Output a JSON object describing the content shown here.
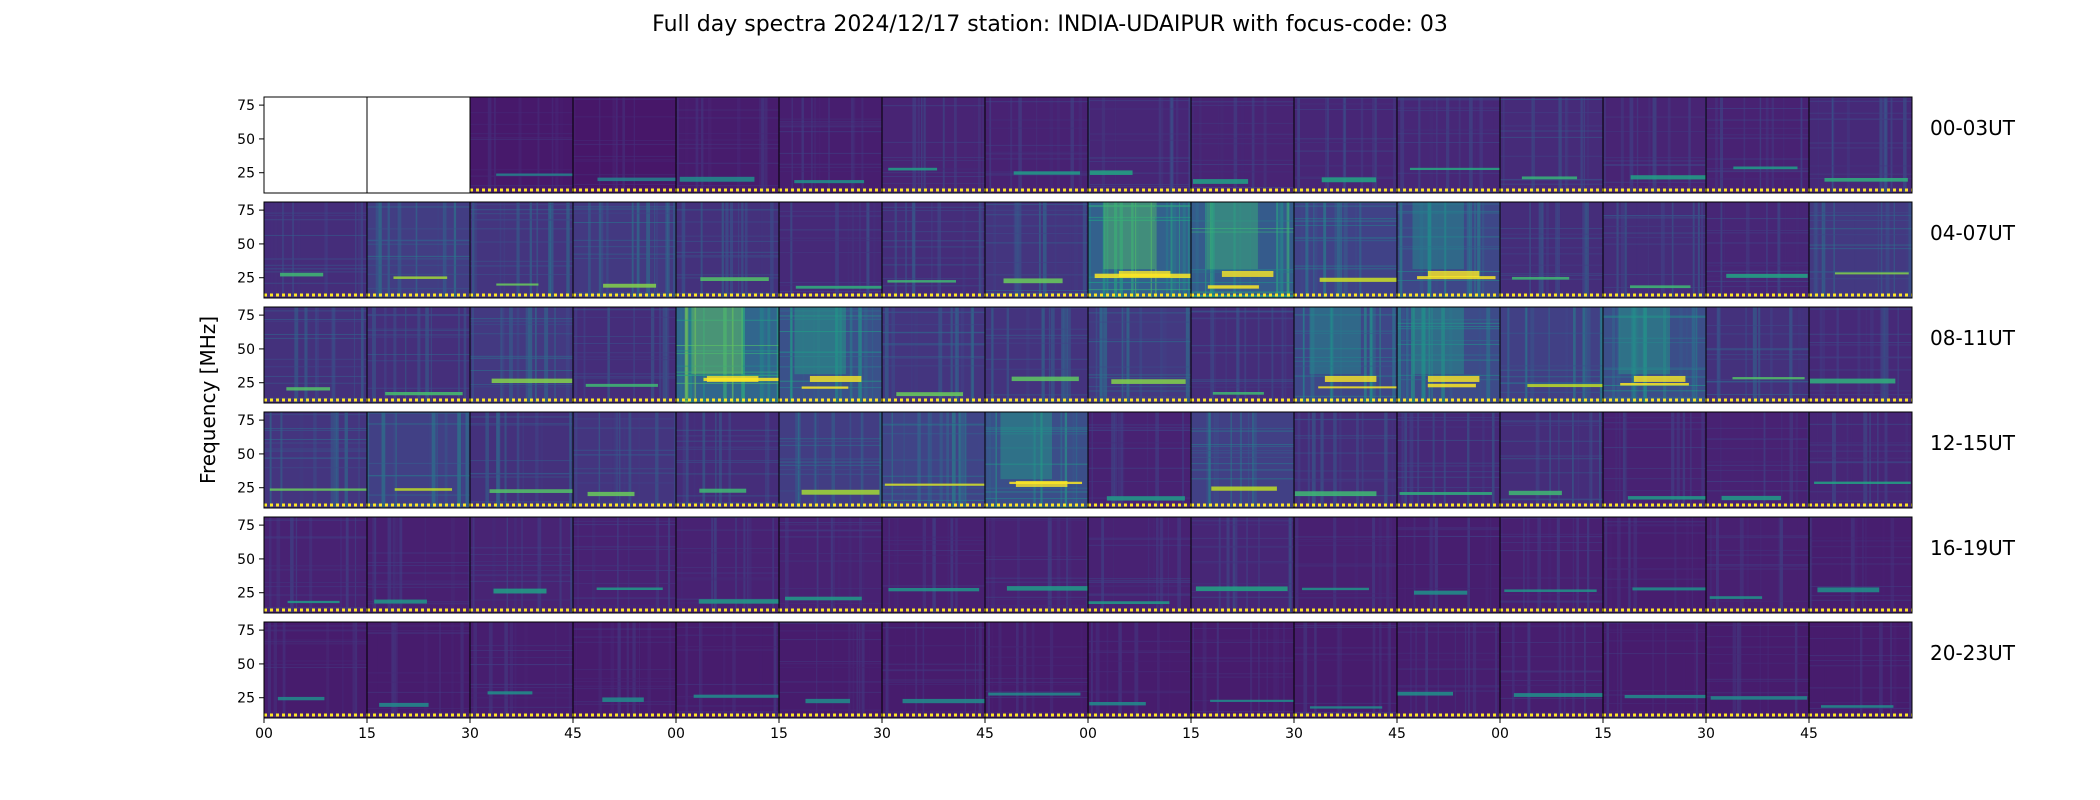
{
  "chart_data": {
    "type": "heatmap",
    "title": "Full day spectra 2024/12/17 station: INDIA-UDAIPUR with focus-code: 03",
    "ylabel": "Frequency [MHz]",
    "xlabel": "",
    "colormap": "viridis",
    "ylim": [
      10,
      81
    ],
    "y_ticks": [
      25,
      50,
      75
    ],
    "x_tick_labels": [
      "00",
      "15",
      "30",
      "45",
      "00",
      "15",
      "30",
      "45",
      "00",
      "15",
      "30",
      "45",
      "00",
      "15",
      "30",
      "45"
    ],
    "rows": [
      {
        "label": "00-03UT",
        "intensity": [
          null,
          null,
          0.12,
          0.11,
          0.13,
          0.14,
          0.17,
          0.16,
          0.18,
          0.17,
          0.18,
          0.19,
          0.21,
          0.17,
          0.16,
          0.2
        ]
      },
      {
        "label": "04-07UT",
        "intensity": [
          0.22,
          0.3,
          0.26,
          0.28,
          0.24,
          0.2,
          0.22,
          0.26,
          0.52,
          0.48,
          0.33,
          0.36,
          0.22,
          0.22,
          0.18,
          0.28
        ]
      },
      {
        "label": "08-11UT",
        "intensity": [
          0.24,
          0.23,
          0.28,
          0.22,
          0.55,
          0.42,
          0.26,
          0.25,
          0.28,
          0.22,
          0.36,
          0.38,
          0.32,
          0.4,
          0.24,
          0.2
        ]
      },
      {
        "label": "12-15UT",
        "intensity": [
          0.26,
          0.32,
          0.24,
          0.26,
          0.22,
          0.3,
          0.34,
          0.4,
          0.16,
          0.32,
          0.22,
          0.2,
          0.22,
          0.16,
          0.16,
          0.18
        ]
      },
      {
        "label": "16-19UT",
        "intensity": [
          0.16,
          0.15,
          0.17,
          0.16,
          0.16,
          0.16,
          0.15,
          0.16,
          0.16,
          0.18,
          0.15,
          0.14,
          0.15,
          0.14,
          0.15,
          0.14
        ]
      },
      {
        "label": "20-23UT",
        "intensity": [
          0.13,
          0.13,
          0.14,
          0.13,
          0.13,
          0.13,
          0.13,
          0.13,
          0.13,
          0.13,
          0.13,
          0.14,
          0.14,
          0.13,
          0.13,
          0.13
        ]
      }
    ],
    "grid": false,
    "legend": "none"
  }
}
